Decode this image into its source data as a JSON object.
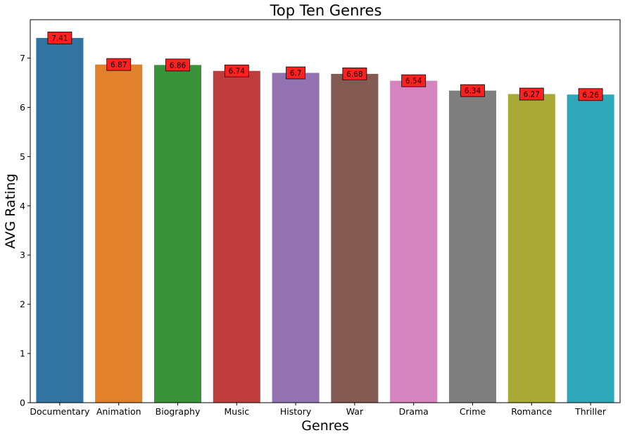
{
  "chart_data": {
    "type": "bar",
    "title": "Top Ten Genres",
    "xlabel": "Genres",
    "ylabel": "AVG Rating",
    "categories": [
      "Documentary",
      "Animation",
      "Biography",
      "Music",
      "History",
      "War",
      "Drama",
      "Crime",
      "Romance",
      "Thriller"
    ],
    "values": [
      7.41,
      6.87,
      6.86,
      6.74,
      6.7,
      6.68,
      6.54,
      6.34,
      6.27,
      6.26
    ],
    "data_labels": [
      "7.41",
      "6.87",
      "6.86",
      "6.74",
      "6.7",
      "6.68",
      "6.54",
      "6.34",
      "6.27",
      "6.26"
    ],
    "colors": [
      "#3274a1",
      "#e1812c",
      "#3a923a",
      "#c03d3e",
      "#9372b2",
      "#845b53",
      "#d684bd",
      "#7f7f7f",
      "#a9aa35",
      "#2ea8b8"
    ],
    "label_box_color": "#ff2020",
    "yticks": [
      0,
      1,
      2,
      3,
      4,
      5,
      6,
      7
    ],
    "ytick_labels": [
      "0",
      "1",
      "2",
      "3",
      "4",
      "5",
      "6",
      "7"
    ],
    "ylim": [
      0,
      7.78
    ],
    "grid": false,
    "legend": "none"
  }
}
